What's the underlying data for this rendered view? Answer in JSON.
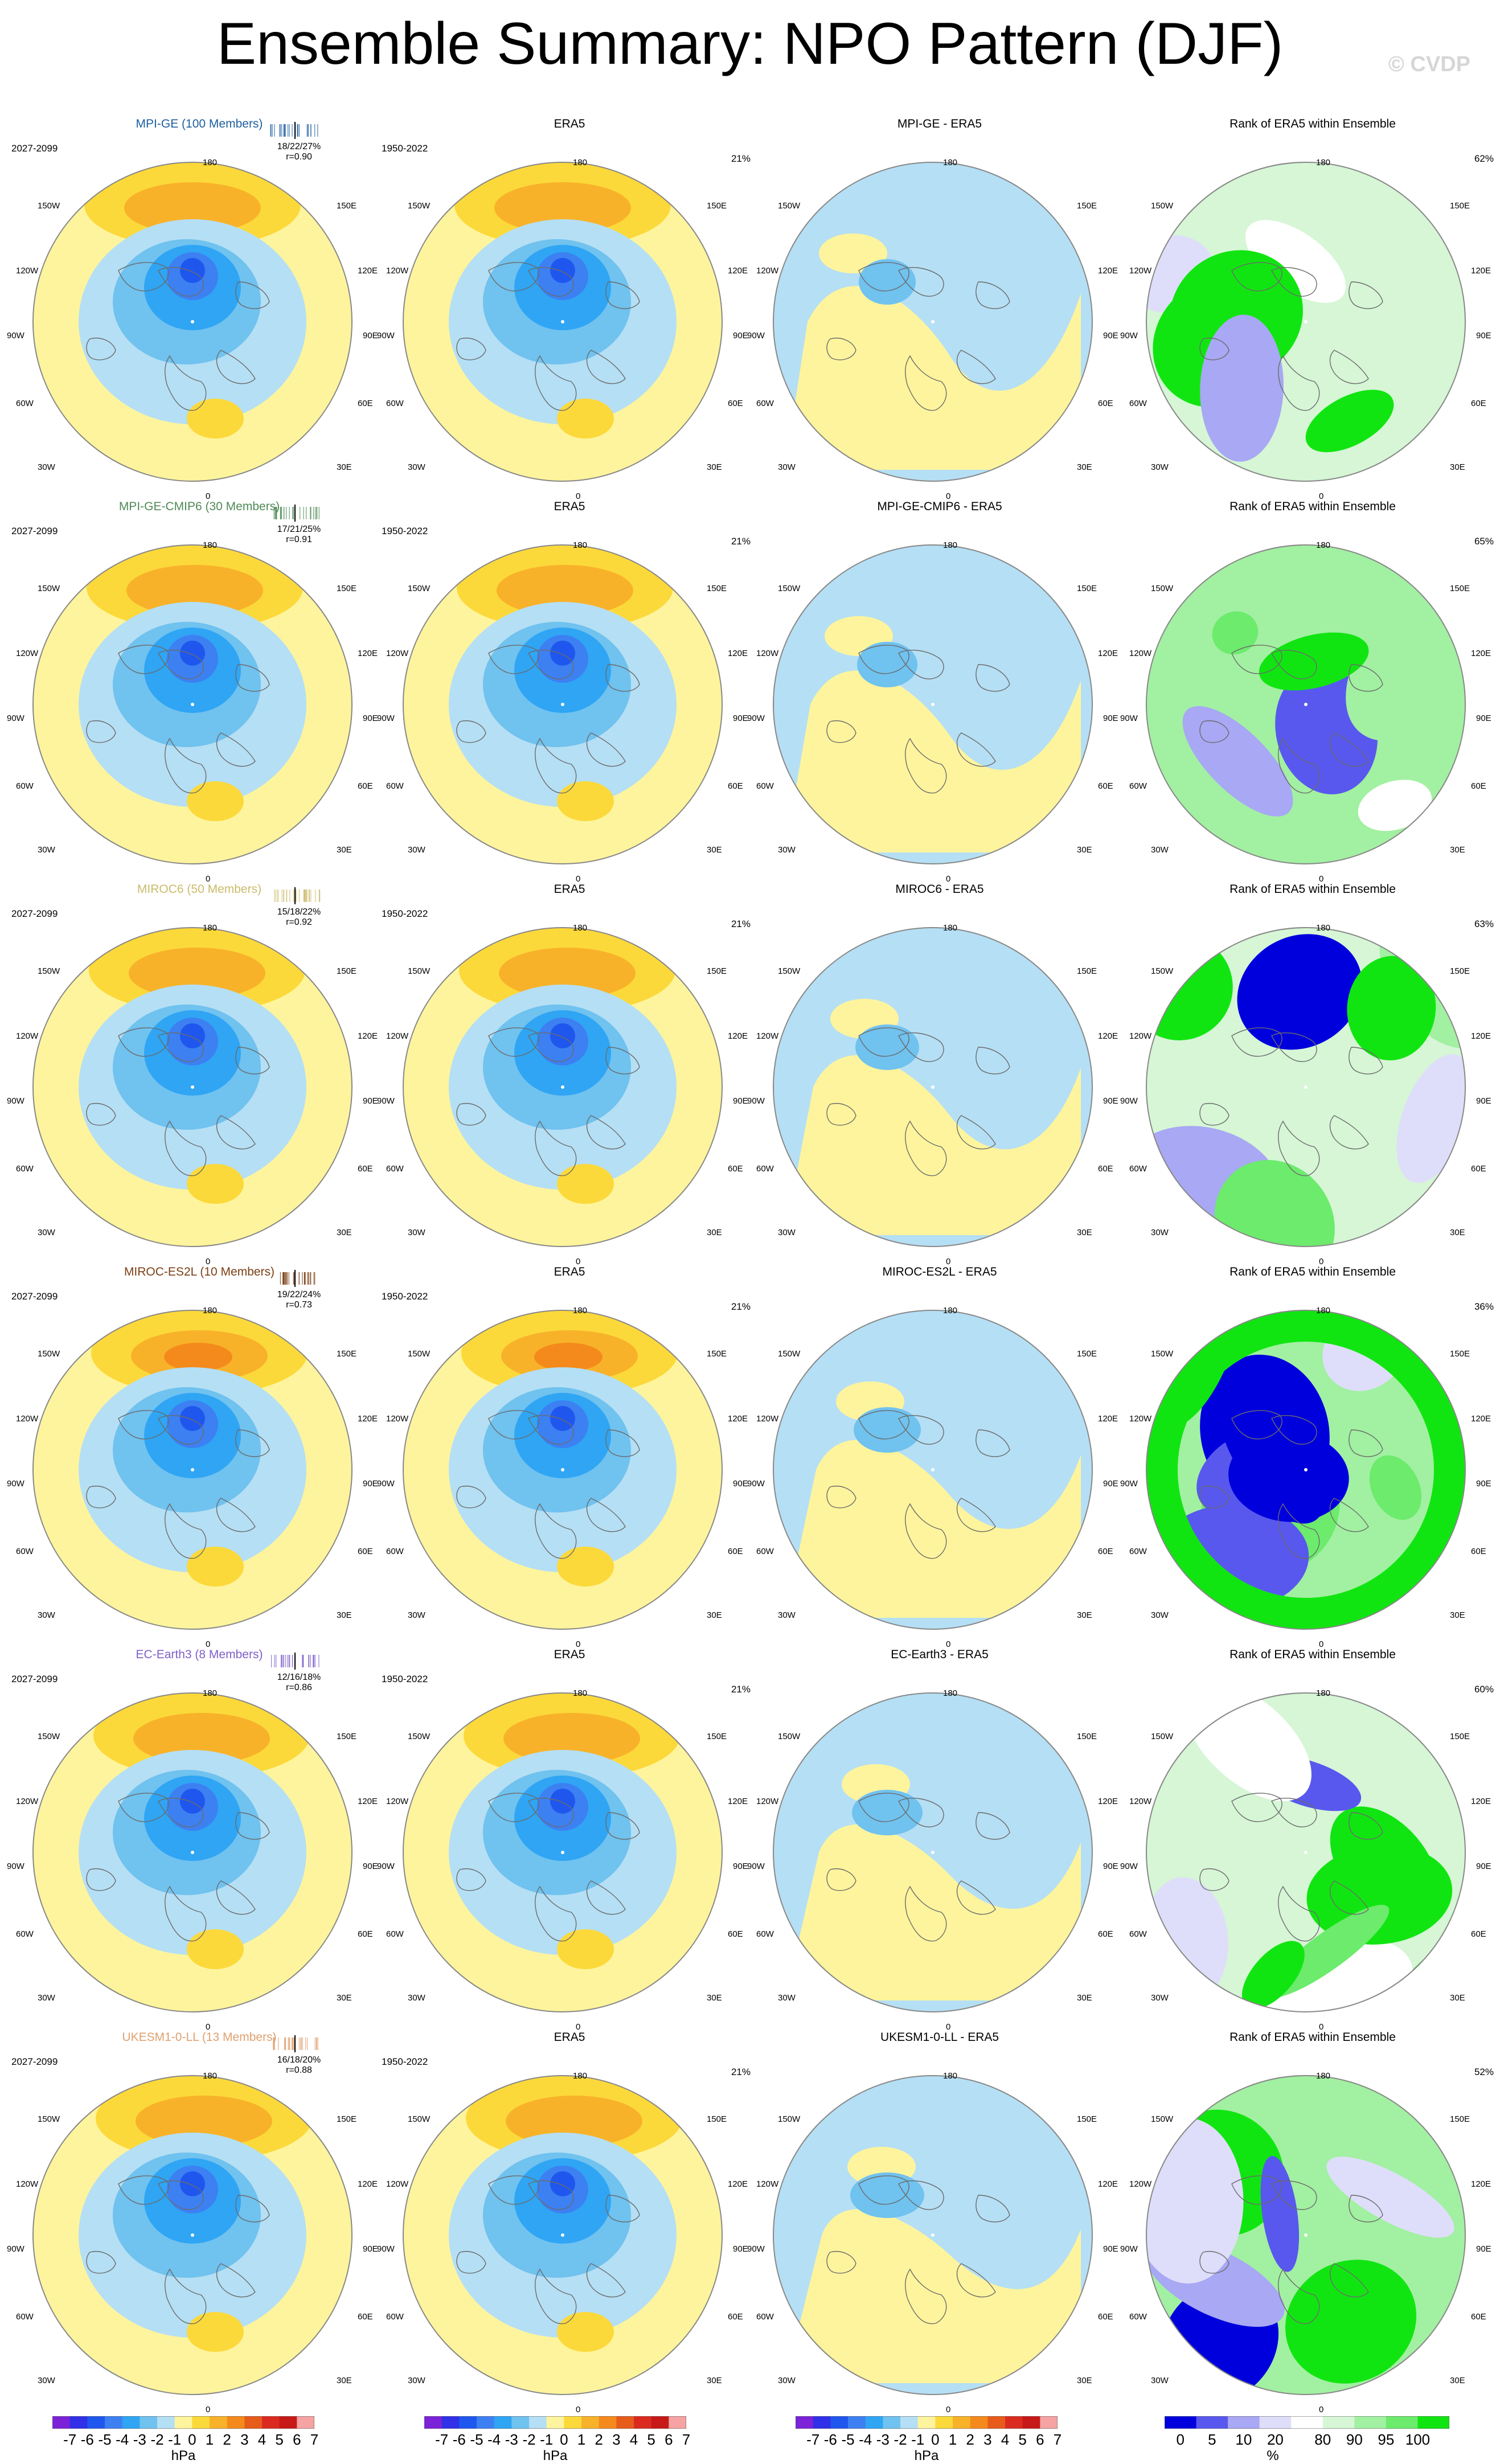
{
  "title": "Ensemble Summary: NPO Pattern (DJF)",
  "watermark": "© CVDP",
  "geo_labels": {
    "n180": "180",
    "w150": "150W",
    "e150": "150E",
    "w120": "120W",
    "e120": "120E",
    "w90": "90W",
    "e90": "90E",
    "w60": "60W",
    "e60": "60E",
    "w30": "30W",
    "e30": "30E",
    "n0": "0"
  },
  "colors": {
    "neg": [
      "#7c22d8",
      "#3030e8",
      "#1f57ee",
      "#3d80f2",
      "#2fa5f4",
      "#70c2ef",
      "#b5dff4"
    ],
    "pos": [
      "#fef49d",
      "#fcd93a",
      "#f8b22a",
      "#f48a1c",
      "#e85c1b",
      "#db2b20",
      "#c71918",
      "#f5a3a3"
    ],
    "rank": [
      "#0000dd",
      "#5858ee",
      "#a8a8f4",
      "#dedefa",
      "#ffffff",
      "#d6f6d6",
      "#a2f0a2",
      "#6ceb6c",
      "#11e511"
    ]
  },
  "ensembles": [
    {
      "model_title": "MPI-GE (100 Members)",
      "model_color": "#1f5f9e",
      "years": "2027-2099",
      "stats_line1": "18/22/27%",
      "stats_line2": "r=0.90",
      "era5_title": "ERA5",
      "era5_years": "1950-2022",
      "era5_pct": "21%",
      "diff_title": "MPI-GE - ERA5",
      "rank_title": "Rank of ERA5 within Ensemble",
      "rank_pct": "62%",
      "variant": 0
    },
    {
      "model_title": "MPI-GE-CMIP6 (30 Members)",
      "model_color": "#4f8a56",
      "years": "2027-2099",
      "stats_line1": "17/21/25%",
      "stats_line2": "r=0.91",
      "era5_title": "ERA5",
      "era5_years": "1950-2022",
      "era5_pct": "21%",
      "diff_title": "MPI-GE-CMIP6 - ERA5",
      "rank_title": "Rank of ERA5 within Ensemble",
      "rank_pct": "65%",
      "variant": 1
    },
    {
      "model_title": "MIROC6 (50 Members)",
      "model_color": "#cbbb6a",
      "years": "2027-2099",
      "stats_line1": "15/18/22%",
      "stats_line2": "r=0.92",
      "era5_title": "ERA5",
      "era5_years": "1950-2022",
      "era5_pct": "21%",
      "diff_title": "MIROC6 - ERA5",
      "rank_title": "Rank of ERA5 within Ensemble",
      "rank_pct": "63%",
      "variant": 2
    },
    {
      "model_title": "MIROC-ES2L (10 Members)",
      "model_color": "#7a3f14",
      "years": "2027-2099",
      "stats_line1": "19/22/24%",
      "stats_line2": "r=0.73",
      "era5_title": "ERA5",
      "era5_years": "1950-2022",
      "era5_pct": "21%",
      "diff_title": "MIROC-ES2L - ERA5",
      "rank_title": "Rank of ERA5 within Ensemble",
      "rank_pct": "36%",
      "variant": 3
    },
    {
      "model_title": "EC-Earth3 (8 Members)",
      "model_color": "#7f5fc9",
      "years": "2027-2099",
      "stats_line1": "12/16/18%",
      "stats_line2": "r=0.86",
      "era5_title": "ERA5",
      "era5_years": "1950-2022",
      "era5_pct": "21%",
      "diff_title": "EC-Earth3 - ERA5",
      "rank_title": "Rank of ERA5 within Ensemble",
      "rank_pct": "60%",
      "variant": 4
    },
    {
      "model_title": "UKESM1-0-LL (13 Members)",
      "model_color": "#e0a06e",
      "years": "2027-2099",
      "stats_line1": "16/18/20%",
      "stats_line2": "r=0.88",
      "era5_title": "ERA5",
      "era5_years": "1950-2022",
      "era5_pct": "21%",
      "diff_title": "UKESM1-0-LL - ERA5",
      "rank_title": "Rank of ERA5 within Ensemble",
      "rank_pct": "52%",
      "variant": 5
    }
  ],
  "colorbars": {
    "hpa_ticks": [
      "-7",
      "-6",
      "-5",
      "-4",
      "-3",
      "-2",
      "-1",
      "0",
      "1",
      "2",
      "3",
      "4",
      "5",
      "6",
      "7"
    ],
    "hpa_unit": "hPa",
    "rank_ticks": [
      "0",
      "5",
      "10",
      "20",
      "80",
      "90",
      "95",
      "100"
    ],
    "rank_unit": "%"
  }
}
